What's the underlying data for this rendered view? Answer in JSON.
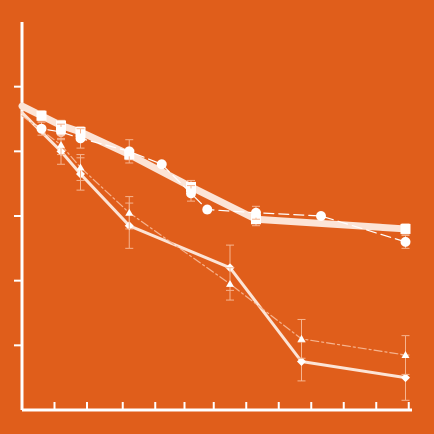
{
  "colors": {
    "background": "#E05E1B",
    "axis": "#FFFFFF",
    "series_thick": "#FCE4D6",
    "series_light": "#F6B48F",
    "marker": "#FFFFFF"
  },
  "chart_data": {
    "type": "line",
    "title": "",
    "xlabel": "",
    "ylabel": "",
    "xlim": [
      0,
      12
    ],
    "ylim": [
      0,
      6
    ],
    "grid": false,
    "legend": "none",
    "x_ticks": [
      1,
      2,
      3,
      4,
      5,
      6,
      7,
      8,
      9,
      10,
      11,
      12
    ],
    "y_ticks": [
      1,
      2,
      3,
      4,
      5
    ],
    "series": [
      {
        "style": "thick-solid",
        "marker": "square",
        "x": [
          0,
          0.6,
          1.2,
          1.8,
          3.3,
          5.2,
          7.2,
          11.8
        ],
        "y": [
          4.7,
          4.55,
          4.4,
          4.3,
          3.95,
          3.45,
          2.95,
          2.8
        ],
        "err": [
          0,
          0.08,
          0.08,
          0.08,
          0.08,
          0.1,
          0.1,
          0.08
        ]
      },
      {
        "style": "dash",
        "marker": "circle",
        "x": [
          0,
          0.6,
          1.2,
          1.8,
          3.3,
          4.3,
          5.2,
          5.7,
          7.2,
          9.2,
          11.8
        ],
        "y": [
          4.55,
          4.35,
          4.3,
          4.2,
          4.0,
          3.8,
          3.35,
          3.1,
          3.05,
          3.0,
          2.6
        ],
        "err": [
          0,
          0.1,
          0.12,
          0.15,
          0.18,
          0,
          0.12,
          0,
          0.1,
          0,
          0.1
        ]
      },
      {
        "style": "solid",
        "marker": "diamond",
        "x": [
          0,
          1.2,
          1.8,
          3.3,
          6.4,
          8.6,
          11.8
        ],
        "y": [
          4.6,
          4.0,
          3.65,
          2.85,
          2.2,
          0.75,
          0.5
        ],
        "err": [
          0,
          0.2,
          0.25,
          0.35,
          0.35,
          0.3,
          0.35
        ]
      },
      {
        "style": "dash-dot",
        "marker": "triangle",
        "x": [
          0,
          1.2,
          1.8,
          3.3,
          6.4,
          8.6,
          11.8
        ],
        "y": [
          4.55,
          4.1,
          3.75,
          3.05,
          1.95,
          1.1,
          0.85
        ],
        "err": [
          0,
          0.15,
          0.2,
          0.25,
          0.25,
          0.3,
          0.3
        ]
      }
    ]
  }
}
